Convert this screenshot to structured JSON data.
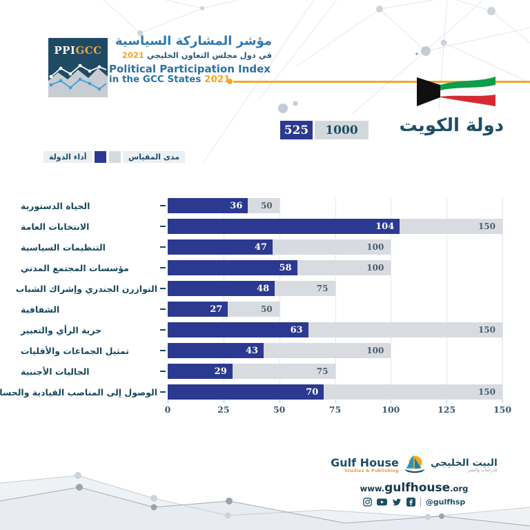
{
  "header": {
    "logo_ppi": "PPI",
    "logo_gcc": "GCC",
    "title_ar": "مؤشر المشاركة السياسية",
    "subtitle_ar": "في دول مجلس التعاون الخليجي",
    "year": "2021",
    "title_en": "Political Participation Index",
    "subtitle_en": "in the GCC States"
  },
  "country": {
    "name_ar": "دولة الكويت",
    "score": "525",
    "scale_total": "1000"
  },
  "legend": {
    "state_performance": "أداء الدولة",
    "scale_range": "مدى المقياس"
  },
  "colors": {
    "performance_bar": "#2b3990",
    "scale_bar": "#d8dce0",
    "accent_orange": "#f6a623",
    "title_navy": "#1d4e66",
    "headline_blue": "#2a72a5"
  },
  "chart_data": {
    "type": "bar",
    "orientation": "horizontal",
    "title": "دولة الكويت",
    "categories": [
      "الحياة الدستورية",
      "الانتخابات العامة",
      "التنظيمات السياسية",
      "مؤسسات المجتمع المدني",
      "التوازرن الجندري وإشراك الشباب",
      "الشفافية",
      "حرية الرأي والتعبير",
      "تمثيل الجماعات والأقليات",
      "الجاليات الأجنبية",
      "الوصول إلى المناصب القيادية والحساسية"
    ],
    "series": [
      {
        "name": "أداء الدولة",
        "values": [
          36,
          104,
          47,
          58,
          48,
          27,
          63,
          43,
          29,
          70
        ]
      },
      {
        "name": "مدى المقياس",
        "values": [
          50,
          150,
          100,
          100,
          75,
          50,
          150,
          100,
          75,
          150
        ]
      }
    ],
    "xlim": [
      0,
      150
    ],
    "xticks": [
      0,
      25,
      50,
      75,
      100,
      125,
      150
    ],
    "grid": true,
    "legend_position": "top-left",
    "totals": {
      "score": 525,
      "scale": 1000
    }
  },
  "footer": {
    "brand_en": "Gulf House",
    "brand_en_sub": "Studies & Publishing",
    "brand_ar": "البيت الخليجي",
    "brand_ar_sub": "للدراسات والنشر",
    "website_www": "www.",
    "website_name": "gulfhouse",
    "website_tld": ".org",
    "social_handle": "@gulfhsp",
    "social_icons": [
      "instagram-icon",
      "youtube-icon",
      "twitter-icon",
      "facebook-icon"
    ]
  }
}
